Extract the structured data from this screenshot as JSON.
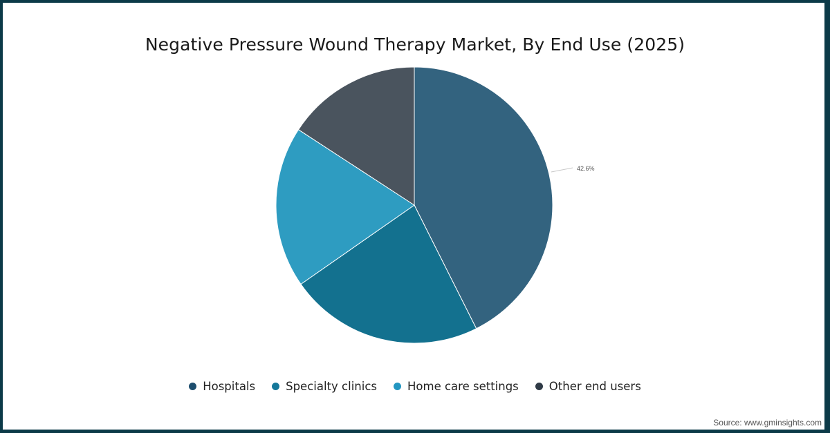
{
  "title": "Negative Pressure Wound Therapy Market, By End Use (2025)",
  "source": "Source: www.gminsights.com",
  "frame_color": "#0c3a48",
  "chart_data": {
    "type": "pie",
    "title": "Negative Pressure Wound Therapy Market, By End Use (2025)",
    "categories": [
      "Hospitals",
      "Specialty clinics",
      "Home care settings",
      "Other end users"
    ],
    "values": [
      42.6,
      22.7,
      18.9,
      15.8
    ],
    "units": "%",
    "colors": [
      "#33637f",
      "#13718f",
      "#2e9cc1",
      "#4a545e"
    ],
    "legend_colors": [
      "#1d4e6e",
      "#15789a",
      "#2396c1",
      "#2f3a46"
    ],
    "data_labels": [
      {
        "category": "Hospitals",
        "text": "42.6%"
      }
    ],
    "start_angle": 0,
    "direction": "clockwise",
    "legend_position": "bottom"
  },
  "legend": [
    {
      "label": "Hospitals"
    },
    {
      "label": "Specialty clinics"
    },
    {
      "label": "Home care settings"
    },
    {
      "label": "Other end users"
    }
  ],
  "labels": {
    "hospitals_pct": "42.6%"
  }
}
